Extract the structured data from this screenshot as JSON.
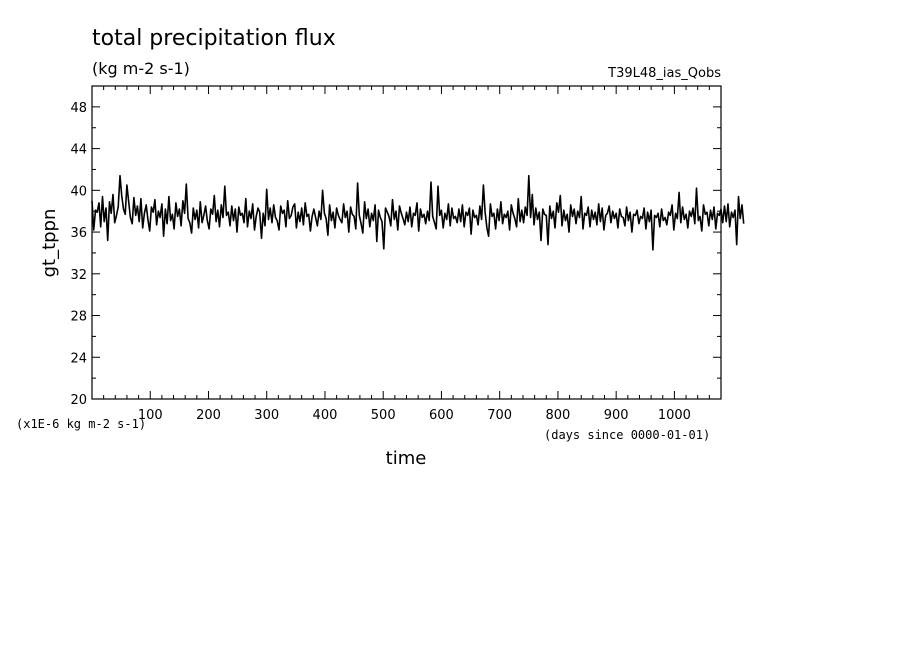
{
  "chart_data": {
    "type": "line",
    "title": "total precipitation flux",
    "subtitle": "(kg m-2 s-1)",
    "experiment": "T39L48_ias_Qobs",
    "xlabel": "time",
    "x_units": "(days since 0000-01-01)",
    "ylabel": "gt_tppn",
    "y_units": "(x1E-6 kg m-2 s-1)",
    "xlim": [
      0,
      1080
    ],
    "ylim": [
      20,
      50
    ],
    "x_ticks": [
      100,
      200,
      300,
      400,
      500,
      600,
      700,
      800,
      900,
      1000
    ],
    "y_ticks": [
      20,
      24,
      28,
      32,
      36,
      40,
      44,
      48
    ],
    "grid": false,
    "series": [
      {
        "x_start": 0,
        "x_step": 3,
        "values": [
          39.0,
          36.2,
          38.1,
          37.9,
          38.8,
          36.5,
          39.4,
          37.0,
          38.3,
          35.2,
          38.9,
          37.8,
          39.6,
          36.9,
          37.6,
          38.4,
          41.4,
          39.5,
          38.2,
          37.7,
          40.5,
          38.9,
          37.4,
          36.8,
          39.3,
          37.6,
          38.5,
          37.0,
          39.2,
          36.4,
          37.8,
          38.6,
          37.2,
          36.1,
          38.4,
          37.9,
          39.1,
          36.7,
          38.0,
          37.4,
          38.7,
          35.6,
          38.2,
          36.8,
          39.4,
          37.1,
          37.7,
          36.3,
          38.8,
          37.5,
          38.2,
          36.6,
          39.0,
          37.8,
          40.6,
          37.3,
          36.9,
          35.9,
          38.3,
          37.2,
          38.1,
          36.4,
          38.9,
          36.9,
          37.6,
          38.5,
          37.1,
          36.3,
          38.2,
          37.7,
          39.5,
          37.0,
          38.1,
          36.5,
          38.6,
          37.4,
          40.4,
          37.6,
          37.9,
          36.6,
          38.5,
          37.1,
          38.2,
          36.0,
          38.4,
          37.6,
          37.8,
          36.9,
          39.2,
          36.5,
          38.0,
          37.3,
          38.7,
          36.2,
          37.5,
          38.3,
          37.9,
          35.4,
          37.8,
          36.6,
          40.1,
          37.2,
          38.3,
          36.9,
          38.6,
          37.4,
          37.1,
          36.2,
          38.5,
          37.8,
          38.1,
          36.5,
          39.0,
          37.3,
          37.6,
          38.4,
          38.7,
          36.4,
          37.9,
          37.0,
          38.3,
          36.7,
          38.8,
          37.5,
          37.7,
          36.1,
          37.5,
          38.2,
          37.4,
          36.6,
          38.0,
          37.2,
          40.0,
          37.8,
          37.3,
          35.7,
          38.6,
          37.1,
          37.9,
          36.4,
          38.3,
          37.6,
          37.2,
          36.9,
          38.7,
          37.4,
          38.0,
          36.0,
          38.4,
          37.7,
          37.5,
          36.3,
          40.7,
          37.6,
          36.8,
          35.9,
          38.9,
          37.3,
          38.2,
          36.5,
          37.8,
          37.1,
          38.6,
          35.1,
          38.1,
          37.4,
          37.0,
          34.4,
          38.3,
          37.9,
          37.5,
          36.6,
          39.1,
          37.2,
          38.0,
          36.2,
          38.5,
          37.8,
          37.3,
          36.7,
          37.9,
          37.0,
          38.4,
          36.5,
          37.8,
          37.6,
          38.8,
          36.1,
          38.2,
          37.4,
          37.7,
          36.8,
          38.0,
          37.1,
          40.8,
          37.5,
          36.9,
          36.3,
          40.4,
          37.6,
          38.1,
          36.4,
          37.8,
          37.2,
          38.7,
          36.6,
          38.3,
          37.3,
          37.5,
          36.9,
          38.2,
          37.0,
          38.6,
          36.5,
          37.9,
          37.6,
          38.3,
          35.8,
          38.1,
          37.4,
          37.6,
          36.7,
          38.5,
          37.2,
          40.5,
          37.9,
          36.4,
          35.6,
          38.7,
          37.5,
          37.8,
          36.3,
          38.2,
          37.1,
          38.9,
          36.8,
          37.7,
          37.4,
          38.0,
          36.2,
          38.6,
          37.8,
          37.3,
          36.5,
          39.2,
          37.0,
          38.1,
          36.9,
          38.4,
          37.6,
          41.4,
          37.4,
          39.6,
          36.7,
          38.3,
          37.2,
          37.9,
          35.2,
          38.2,
          37.7,
          37.6,
          34.8,
          38.5,
          37.3,
          38.0,
          36.4,
          38.8,
          37.9,
          39.5,
          36.6,
          38.1,
          37.1,
          37.7,
          36.0,
          38.6,
          37.5,
          38.2,
          36.8,
          38.0,
          37.4,
          39.4,
          36.3,
          37.8,
          37.6,
          38.4,
          36.5,
          38.1,
          37.2,
          37.9,
          36.7,
          38.7,
          37.0,
          38.3,
          36.2,
          37.6,
          37.8,
          38.5,
          36.9,
          38.0,
          37.3,
          37.8,
          36.4,
          38.2,
          37.5,
          37.4,
          36.6,
          38.4,
          37.1,
          37.9,
          36.0,
          37.7,
          37.6,
          38.1,
          36.8,
          37.5,
          37.3,
          38.3,
          36.3,
          37.9,
          37.0,
          38.1,
          34.3,
          37.6,
          37.4,
          37.8,
          36.5,
          38.2,
          37.1,
          37.4,
          36.7,
          37.9,
          37.6,
          38.6,
          36.2,
          37.8,
          37.3,
          39.8,
          36.9,
          38.4,
          37.2,
          37.7,
          36.4,
          38.0,
          37.5,
          38.3,
          36.8,
          40.2,
          37.1,
          37.5,
          36.1,
          38.6,
          37.7,
          37.9,
          36.6,
          38.1,
          37.2,
          38.4,
          36.3,
          37.8,
          37.6,
          38.2,
          36.9,
          38.5,
          37.0,
          38.7,
          36.5,
          37.9,
          37.4,
          38.1,
          34.8,
          39.4,
          37.3,
          38.6,
          36.8
        ]
      }
    ]
  }
}
